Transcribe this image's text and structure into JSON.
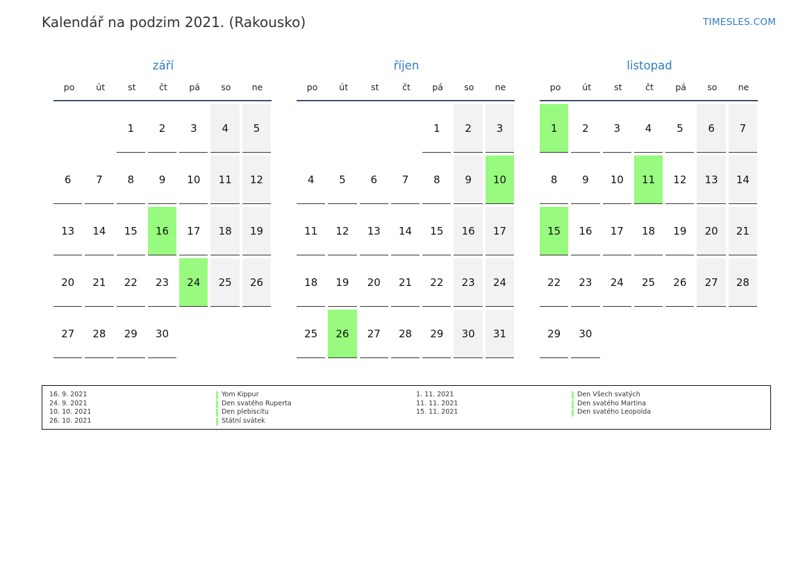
{
  "header": {
    "title": "Kalendář na podzim 2021. (Rakousko)",
    "brand": "TIMESLES.COM"
  },
  "colors": {
    "accent": "#2f7bbf",
    "holiday": "#98fa7f",
    "weekend": "#f2f2f2",
    "rule": "#3a506b"
  },
  "weekdays": [
    "po",
    "út",
    "st",
    "čt",
    "pá",
    "so",
    "ne"
  ],
  "months": [
    {
      "name": "září",
      "first_weekday": 3,
      "days": 30,
      "holidays": [
        16,
        24
      ]
    },
    {
      "name": "říjen",
      "first_weekday": 5,
      "days": 31,
      "holidays": [
        10,
        26
      ]
    },
    {
      "name": "listopad",
      "first_weekday": 1,
      "days": 30,
      "holidays": [
        1,
        11,
        15
      ]
    }
  ],
  "legend": {
    "left_dates": [
      "16. 9. 2021",
      "24. 9. 2021",
      "10. 10. 2021",
      "26. 10. 2021"
    ],
    "left_names": [
      "Yom Kippur",
      "Den svatého Ruperta",
      "Den plebiscitu",
      "Státní svátek"
    ],
    "right_dates": [
      "1. 11. 2021",
      "11. 11. 2021",
      "15. 11. 2021"
    ],
    "right_names": [
      "Den Všech svatých",
      "Den svatého Martina",
      "Den svatého Leopolda"
    ]
  }
}
